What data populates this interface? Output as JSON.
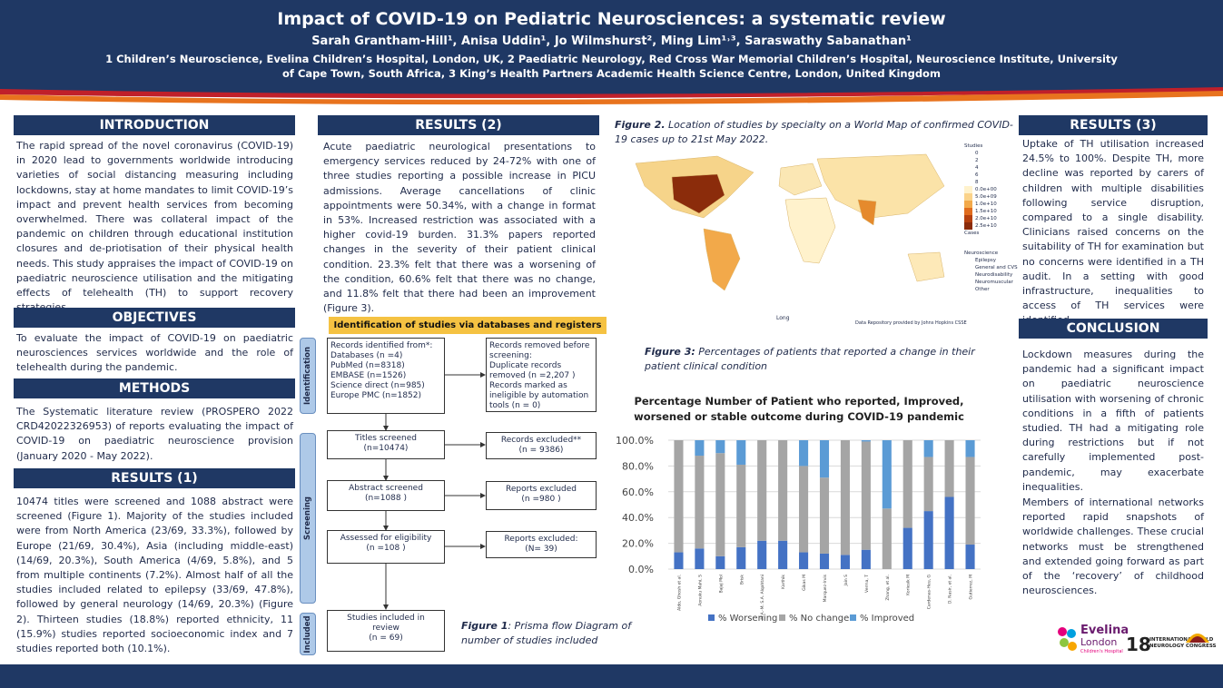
{
  "header": {
    "title": "Impact of COVID-19 on Pediatric Neurosciences: a systematic review",
    "authors": "Sarah Grantham-Hill¹, Anisa Uddin¹,  Jo Wilmshurst², Ming Lim¹˒³, Saraswathy Sabanathan¹",
    "affiliations": [
      "1 Children’s Neuroscience, Evelina Children’s Hospital, London, UK, 2 Paediatric Neurology, Red Cross War Memorial Children’s Hospital, Neuroscience Institute, University",
      "of Cape Town, South Africa, 3 King’s Health Partners Academic Health Science Centre, London, United Kingdom"
    ]
  },
  "introduction": {
    "heading": "INTRODUCTION",
    "text": "The rapid spread of the novel coronavirus (COVID-19) in 2020 lead to governments worldwide introducing varieties of social distancing measuring including lockdowns, stay at home mandates to limit COVID-19’s impact and prevent health services from becoming overwhelmed. There was collateral impact of the pandemic on children through educational institution closures and de-priotisation of their physical health needs. This study appraises the impact of COVID-19 on paediatric neuroscience utilisation and the mitigating effects of telehealth (TH) to support recovery strategies."
  },
  "objectives": {
    "heading": "OBJECTIVES",
    "text": "To evaluate the impact of COVID-19 on paediatric neurosciences services worldwide and the role of telehealth during the pandemic."
  },
  "methods": {
    "heading": "METHODS",
    "text": "The Systematic literature review (PROSPERO 2022 CRD42022326953) of reports evaluating the impact of COVID-19 on paediatric neuroscience provision (January 2020 - May 2022)."
  },
  "results1": {
    "heading": "RESULTS (1)",
    "text": "10474 titles were screened and 1088 abstract were screened (Figure 1). Majority of the  studies included were from North America (23/69, 33.3%), followed by Europe (21/69, 30.4%), Asia (including middle-east) (14/69, 20.3%), South America (4/69, 5.8%), and 5 from multiple continents (7.2%). Almost half of all the studies included related to epilepsy (33/69, 47.8%), followed by general neurology (14/69, 20.3%) (Figure 2). Thirteen studies (18.8%) reported ethnicity, 11 (15.9%)  studies reported socioeconomic index and 7 studies reported both (10.1%)."
  },
  "results2": {
    "heading": "RESULTS (2)",
    "text": "Acute paediatric neurological presentations to emergency services reduced by 24-72% with one of three studies reporting a possible increase in PICU admissions. Average cancellations of clinic appointments were 50.34%, with a change in format in 53%. Increased restriction was  associated with a higher covid-19 burden. 31.3% papers reported changes in the severity of their patient clinical condition. 23.3% felt that there was a worsening of the condition, 60.6% felt that there was no change, and 11.8% felt that there had been an improvement (Figure 3)."
  },
  "results3": {
    "heading": "RESULTS (3)",
    "text": "Uptake of TH utilisation increased 24.5% to 100%.  Despite TH, more decline was reported by carers of children with multiple disabilities following service disruption, compared to a single disability. Clinicians raised concerns on the suitability of TH for examination but no concerns were identified in a TH audit.  In a setting with good infrastructure, inequalities to access of TH services were identified."
  },
  "conclusion": {
    "heading": "CONCLUSION",
    "paragraphs": [
      "Lockdown measures during the pandemic had a significant impact on paediatric neuroscience utilisation with worsening of chronic conditions in a fifth of patients studied. TH had a mitigating role during restrictions but if not carefully implemented post-pandemic, may exacerbate inequalities.",
      "Members of international networks reported rapid snapshots of worldwide challenges. These crucial networks must be strengthened and extended going forward as part of the ‘recovery’ of childhood neurosciences."
    ]
  },
  "prisma": {
    "title": "Identification of studies via databases and registers",
    "phases": [
      "Identification",
      "Screening",
      "Included"
    ],
    "left": [
      [
        "Records identified from*:",
        "Databases (n =4)",
        "PubMed (n=8318)",
        "EMBASE (n=1526)",
        "Science direct (n=985)",
        "Europe PMC (n=1852)"
      ],
      [
        "Titles screened",
        "(n=10474)"
      ],
      [
        "Abstract screened",
        "(n=1088 )"
      ],
      [
        "Assessed for eligibility",
        "(n =108 )"
      ],
      [
        "Studies included in",
        "review",
        "(n = 69)"
      ]
    ],
    "right": [
      [
        "Records removed before",
        "screening:",
        "Duplicate records",
        "removed  (n =2,207 )",
        "Records marked as",
        "ineligible by automation",
        "tools (n = 0)"
      ],
      [
        "Records excluded**",
        "(n = 9386)"
      ],
      [
        "Reports excluded",
        "(n =980 )"
      ],
      [
        "Reports excluded:",
        "(N= 39)"
      ]
    ]
  },
  "figure1": {
    "label": "Figure 1",
    "text": ": Prisma flow Diagram of number of studies included"
  },
  "figure2": {
    "label": "Figure 2.",
    "text": " Location of studies by specialty on a World Map of confirmed COVID-19 cases up to 21st May 2022.",
    "studies_title": "Studies",
    "studies_levels": [
      "0",
      "2",
      "4",
      "6",
      "8"
    ],
    "cases_title": "Cases",
    "cases_levels": [
      "0.0e+00",
      "5.0e+09",
      "1.0e+10",
      "1.5e+10",
      "2.0e+10",
      "2.5e+10"
    ],
    "specialty_title": "Neuroscience",
    "specialties": [
      "Epilepsy",
      "General and CVS",
      "Neurodisability",
      "Neuromuscular",
      "Other"
    ],
    "x_label": "Long",
    "source": "Data Repository provided by Johns Hopkins CSSE"
  },
  "figure3": {
    "label": "Figure 3:",
    "text": " Percentages of patients that reported  a change in their patient clinical condition",
    "chart": {
      "type": "bar",
      "stacked": true,
      "title": [
        "Percentage Number of Patient who reported, Improved,",
        "worsened or stable outcome during COVID-19 pandemic"
      ],
      "categories": [
        "Aldo, Ghosh et al.",
        "Aonuku Mahi, S",
        "Bajaj Mol",
        "Brisk",
        "M.A.-M. S.A. Alqahtani",
        "Karthik",
        "Gikas M",
        "Marquez-Irvis",
        "Jain S",
        "Verma, T",
        "Zhang, et al.",
        "Koriesik M",
        "Cardenas-Heu, G",
        "D. Nasir, et al.",
        "Gutierrez, M"
      ],
      "series": [
        {
          "name": "% Worsening",
          "color": "#4472c4",
          "values": [
            13,
            16,
            10,
            17,
            22,
            22,
            13,
            12,
            11,
            15,
            0,
            32,
            45,
            56,
            19
          ]
        },
        {
          "name": "% No change",
          "color": "#a5a5a5",
          "values": [
            87,
            72,
            80,
            64,
            78,
            78,
            67,
            59,
            89,
            84,
            47,
            68,
            42,
            44,
            68
          ]
        },
        {
          "name": "% Improved",
          "color": "#5b9bd5",
          "values": [
            0,
            12,
            10,
            19,
            0,
            0,
            20,
            29,
            0,
            1,
            53,
            0,
            13,
            0,
            13
          ]
        }
      ],
      "ylim": [
        0,
        100
      ],
      "yticks": [
        {
          "value": 0,
          "label": "0.0%"
        },
        {
          "value": 20,
          "label": "20.0%"
        },
        {
          "value": 40,
          "label": "40.0%"
        },
        {
          "value": 60,
          "label": "60.0%"
        },
        {
          "value": 80,
          "label": "80.0%"
        },
        {
          "value": 100,
          "label": "100.0%"
        }
      ],
      "grid": true,
      "legend": "bottom"
    }
  },
  "logos": {
    "evelina": [
      "Evelina",
      "London",
      "Children's Hospital"
    ],
    "congress": [
      "18",
      "INTERNATIONAL CHILD",
      "NEUROLOGY CONGRESS"
    ]
  }
}
